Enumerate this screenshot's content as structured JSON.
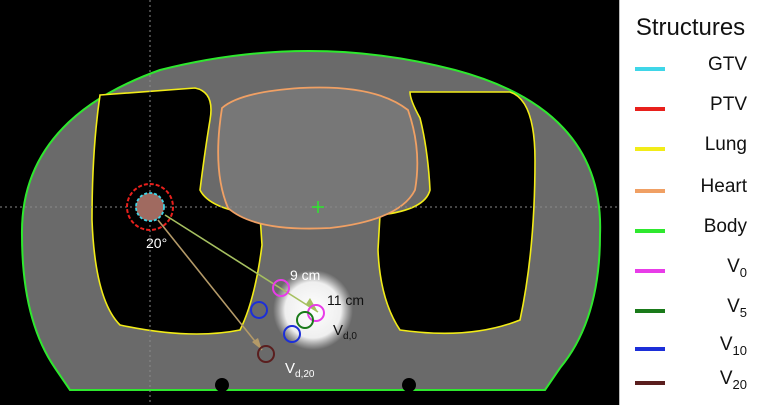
{
  "legend": {
    "title": "Structures",
    "items": [
      {
        "label": "GTV",
        "sub": "",
        "color": "#3fd6e8"
      },
      {
        "label": "PTV",
        "sub": "",
        "color": "#e8201c"
      },
      {
        "label": "Lung",
        "sub": "",
        "color": "#f2ec18"
      },
      {
        "label": "Heart",
        "sub": "",
        "color": "#f0a064"
      },
      {
        "label": "Body",
        "sub": "",
        "color": "#2ee82e"
      },
      {
        "label": "V",
        "sub": "0",
        "color": "#e83ce8"
      },
      {
        "label": "V",
        "sub": "5",
        "color": "#1a7a1a"
      },
      {
        "label": "V",
        "sub": "10",
        "color": "#1c2fd8"
      },
      {
        "label": "V",
        "sub": "20",
        "color": "#5a1e1e"
      }
    ]
  },
  "annotations": {
    "angle": "20°",
    "dist_9": "9 cm",
    "dist_11": "11 cm",
    "vd0_main": "V",
    "vd0_sub": "d,0",
    "vd20_main": "V",
    "vd20_sub": "d,20"
  }
}
